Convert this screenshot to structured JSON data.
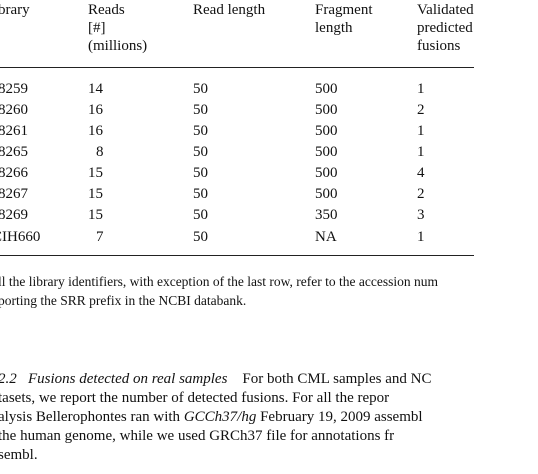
{
  "table": {
    "headers": [
      [
        "brary"
      ],
      [
        "Reads",
        "[#]",
        "(millions)"
      ],
      [
        "Read length"
      ],
      [
        "Fragment",
        "length"
      ],
      [
        "Validated",
        "predicted",
        "fusions"
      ]
    ],
    "rows": [
      [
        "8259",
        "14",
        "50",
        "500",
        "1"
      ],
      [
        "8260",
        "16",
        "50",
        "500",
        "2"
      ],
      [
        "8261",
        "16",
        "50",
        "500",
        "1"
      ],
      [
        "8265",
        "8",
        "50",
        "500",
        "1"
      ],
      [
        "8266",
        "15",
        "50",
        "500",
        "4"
      ],
      [
        "8267",
        "15",
        "50",
        "500",
        "2"
      ],
      [
        "8269",
        "15",
        "50",
        "350",
        "3"
      ],
      [
        "CIH660",
        "7",
        "50",
        "NA",
        "1"
      ]
    ]
  },
  "footnote": {
    "line1": "ll the library identifiers, with exception of the last row, refer to the accession num",
    "line2": "porting the SRR prefix in the NCBI databank."
  },
  "section": {
    "number": "2.2",
    "title": "Fusions detected on real samples",
    "line1_rest": "For both CML samples and NC",
    "line2": "tasets, we report the number of detected fusions. For all the repor",
    "line3_a": "alysis Bellerophontes ran with ",
    "line3_italic": "GCCh37/hg",
    "line3_b": " February 19, 2009 assembl",
    "line4": "the human genome, while we used GRCh37 file for annotations fr",
    "line5": "sembl."
  }
}
